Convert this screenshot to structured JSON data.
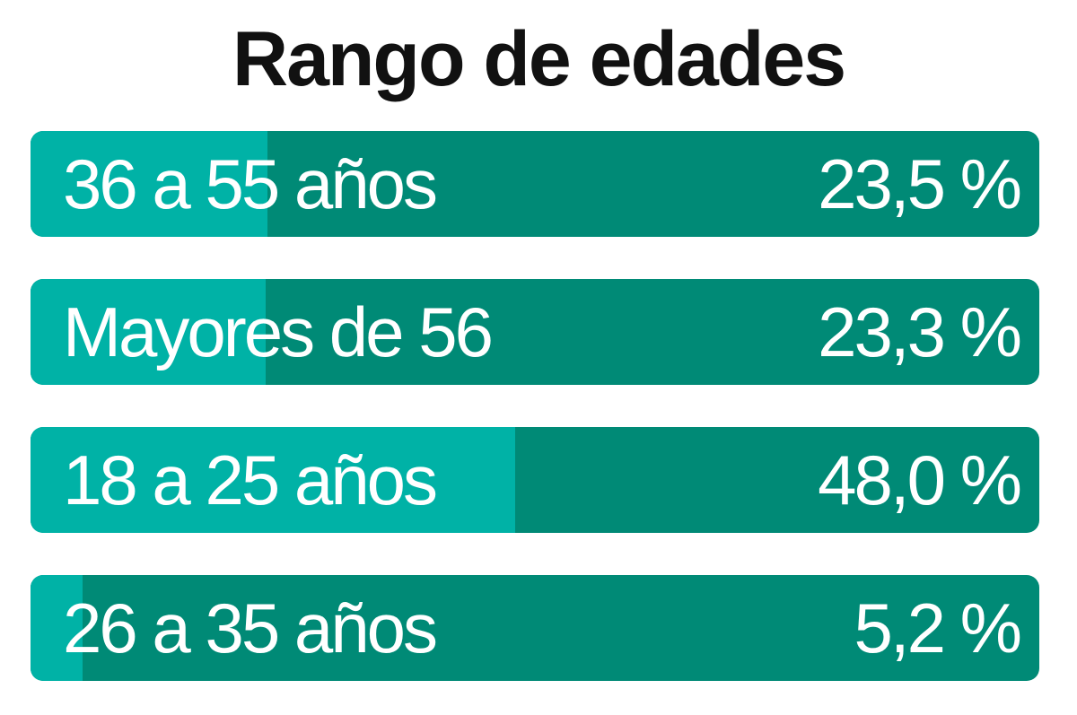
{
  "chart_data": {
    "type": "bar",
    "orientation": "horizontal",
    "title": "Rango de edades",
    "categories": [
      "36 a 55 años",
      "Mayores de 56",
      "18 a 25 años",
      "26 a 35 años"
    ],
    "values": [
      23.5,
      23.3,
      48.0,
      5.2
    ],
    "value_labels": [
      "23,5 %",
      "23,3 %",
      "48,0 %",
      "5,2 %"
    ],
    "unit": "%",
    "xlim": [
      0,
      100
    ],
    "grid": false,
    "legend": "none"
  },
  "colors": {
    "track": "#008a76",
    "fill": "#00b2a6",
    "text": "#ffffff",
    "title": "#111111"
  }
}
